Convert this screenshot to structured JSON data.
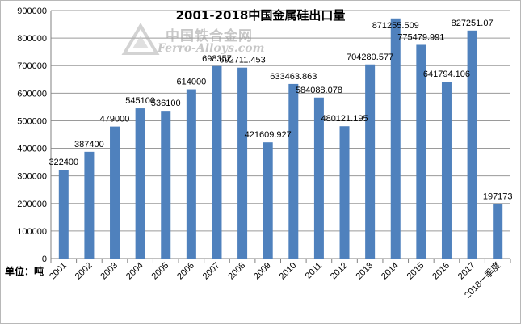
{
  "chart_data": {
    "type": "bar",
    "title": "2001-2018中国金属硅出口量",
    "unit_label": "单位：吨",
    "categories": [
      "2001",
      "2002",
      "2003",
      "2004",
      "2005",
      "2006",
      "2007",
      "2008",
      "2009",
      "2010",
      "2011",
      "2012",
      "2013",
      "2014",
      "2015",
      "2016",
      "2017",
      "2018一季度"
    ],
    "values": [
      322400,
      387400,
      479000,
      545100,
      536100,
      614000,
      698357,
      692711.453,
      421609.927,
      633463.863,
      584088.078,
      480121.195,
      704280.577,
      871255.509,
      775479.991,
      641794.106,
      827251.07,
      197173
    ],
    "data_labels": [
      "322400",
      "387400",
      "479000",
      "545100",
      "536100",
      "614000",
      "698357",
      "692711.453",
      "421609.927",
      "633463.863",
      "584088.078",
      "480121.195",
      "704280.577",
      "871255.509",
      "775479.991",
      "641794.106",
      "827251.07",
      "197173"
    ],
    "y_ticks": [
      "0",
      "100000",
      "200000",
      "300000",
      "400000",
      "500000",
      "600000",
      "700000",
      "800000",
      "900000"
    ],
    "ylim": [
      0,
      900000
    ],
    "grid": true,
    "bar_color": "#4f81bd",
    "watermark": {
      "cn": "中国铁合金网",
      "en": "Ferro-Alloys.com"
    }
  }
}
